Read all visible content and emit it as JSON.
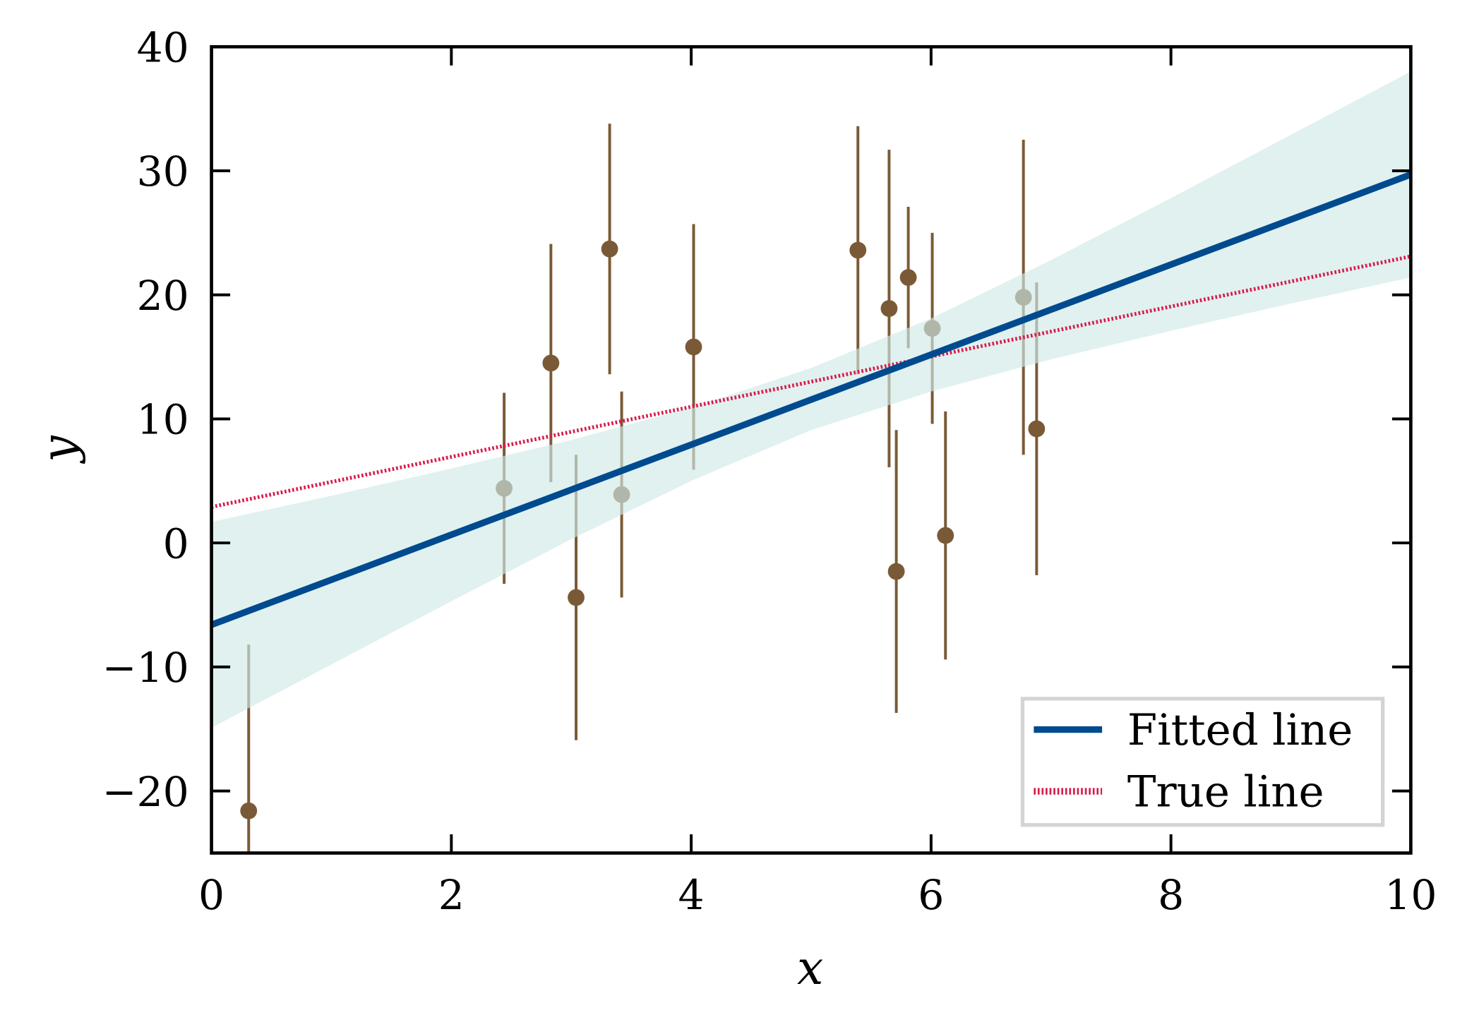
{
  "chart_data": {
    "type": "scatter",
    "title": "",
    "xlabel": "x",
    "ylabel": "y",
    "xlim": [
      0,
      10
    ],
    "ylim": [
      -25,
      40
    ],
    "x_ticks": [
      0,
      2,
      4,
      6,
      8,
      10
    ],
    "x_tick_labels": [
      "0",
      "2",
      "4",
      "6",
      "8",
      "10"
    ],
    "y_ticks": [
      -20,
      -10,
      0,
      10,
      20,
      30,
      40
    ],
    "y_tick_labels": [
      "−20",
      "−10",
      "0",
      "10",
      "20",
      "30",
      "40"
    ],
    "grid": false,
    "legend": {
      "placement": "lower-right",
      "entries": [
        {
          "label": "Fitted line",
          "style": "solid",
          "color": "#004a8f"
        },
        {
          "label": "True line",
          "style": "dotted",
          "color": "#d81b4a"
        }
      ]
    },
    "points": {
      "color": "#7a5a36",
      "x": [
        0.31,
        2.44,
        2.83,
        3.04,
        3.32,
        3.42,
        4.02,
        5.39,
        5.65,
        5.71,
        5.81,
        6.01,
        6.12,
        6.77,
        6.88
      ],
      "y": [
        -21.6,
        4.4,
        14.5,
        -4.4,
        23.7,
        3.9,
        15.8,
        23.6,
        18.9,
        -2.3,
        21.4,
        17.3,
        0.6,
        19.8,
        9.2
      ],
      "yerr": [
        13.4,
        7.7,
        9.6,
        11.5,
        10.1,
        8.3,
        9.9,
        10.0,
        12.8,
        11.4,
        5.7,
        7.7,
        10.0,
        12.7,
        11.8
      ]
    },
    "fitted_line": {
      "name": "Fitted line",
      "x": [
        0,
        10
      ],
      "y": [
        -6.6,
        29.7
      ],
      "color": "#004a8f"
    },
    "true_line": {
      "name": "True line",
      "x": [
        0,
        10
      ],
      "y": [
        2.9,
        23.1
      ],
      "color": "#d81b4a"
    },
    "confidence_band": {
      "color": "#cfe9e6",
      "x": [
        0,
        1,
        2,
        3,
        4,
        5,
        6,
        7,
        8,
        9,
        10
      ],
      "upper": [
        1.7,
        3.8,
        6.0,
        8.3,
        10.9,
        14.1,
        18.1,
        22.8,
        27.8,
        32.9,
        38.0
      ],
      "lower": [
        -14.9,
        -9.8,
        -4.7,
        0.3,
        5.0,
        9.1,
        12.2,
        14.8,
        17.1,
        19.3,
        21.4
      ]
    }
  }
}
